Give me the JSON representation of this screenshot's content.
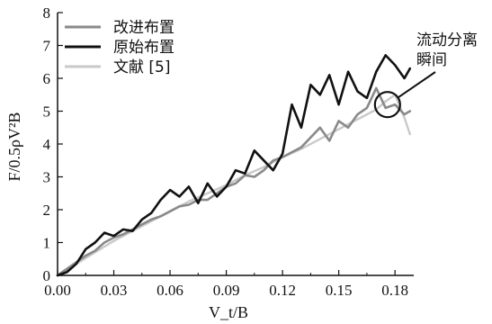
{
  "chart_data": {
    "type": "line",
    "title": "",
    "xlabel": "V_t/B",
    "ylabel": "F/0.5ρV²B",
    "xlim": [
      0,
      0.19
    ],
    "ylim": [
      0,
      8
    ],
    "x_ticks": [
      "0.00",
      "0.03",
      "0.06",
      "0.09",
      "0.12",
      "0.15",
      "0.18"
    ],
    "y_ticks": [
      "0",
      "1",
      "2",
      "3",
      "4",
      "5",
      "6",
      "7",
      "8"
    ],
    "grid": false,
    "legend_position": "top-left",
    "series": [
      {
        "name": "改进布置",
        "color": "#8a8a8a",
        "x": [
          0.0,
          0.005,
          0.01,
          0.015,
          0.02,
          0.025,
          0.03,
          0.035,
          0.04,
          0.045,
          0.05,
          0.055,
          0.06,
          0.065,
          0.07,
          0.075,
          0.08,
          0.085,
          0.09,
          0.095,
          0.1,
          0.105,
          0.11,
          0.115,
          0.12,
          0.125,
          0.13,
          0.135,
          0.14,
          0.145,
          0.15,
          0.155,
          0.16,
          0.165,
          0.17,
          0.175,
          0.18,
          0.185,
          0.188
        ],
        "y": [
          0.0,
          0.2,
          0.4,
          0.6,
          0.75,
          1.0,
          1.15,
          1.25,
          1.4,
          1.55,
          1.7,
          1.8,
          1.95,
          2.1,
          2.15,
          2.3,
          2.3,
          2.5,
          2.7,
          2.8,
          3.05,
          3.0,
          3.2,
          3.5,
          3.6,
          3.75,
          3.9,
          4.2,
          4.5,
          4.1,
          4.7,
          4.5,
          4.9,
          5.1,
          5.7,
          5.1,
          5.2,
          4.9,
          5.0
        ]
      },
      {
        "name": "原始布置",
        "color": "#111111",
        "x": [
          0.0,
          0.005,
          0.01,
          0.015,
          0.02,
          0.025,
          0.03,
          0.035,
          0.04,
          0.045,
          0.05,
          0.055,
          0.06,
          0.065,
          0.07,
          0.075,
          0.08,
          0.085,
          0.09,
          0.095,
          0.1,
          0.105,
          0.11,
          0.115,
          0.12,
          0.125,
          0.13,
          0.135,
          0.14,
          0.145,
          0.15,
          0.155,
          0.16,
          0.165,
          0.17,
          0.175,
          0.18,
          0.185,
          0.188
        ],
        "y": [
          0.0,
          0.1,
          0.35,
          0.8,
          1.0,
          1.3,
          1.2,
          1.4,
          1.35,
          1.7,
          1.9,
          2.3,
          2.6,
          2.4,
          2.7,
          2.2,
          2.8,
          2.4,
          2.7,
          3.2,
          3.1,
          3.8,
          3.5,
          3.2,
          3.7,
          5.2,
          4.5,
          5.8,
          5.5,
          6.1,
          5.2,
          6.2,
          5.6,
          5.4,
          6.2,
          6.7,
          6.4,
          6.0,
          6.3
        ]
      },
      {
        "name": "文献 [5]",
        "color": "#c9c9c9",
        "x": [
          0.0,
          0.01,
          0.02,
          0.03,
          0.04,
          0.05,
          0.06,
          0.07,
          0.08,
          0.09,
          0.1,
          0.11,
          0.12,
          0.13,
          0.14,
          0.15,
          0.16,
          0.17,
          0.175,
          0.18,
          0.185,
          0.188
        ],
        "y": [
          0.0,
          0.35,
          0.7,
          1.05,
          1.35,
          1.65,
          1.95,
          2.25,
          2.5,
          2.75,
          3.05,
          3.3,
          3.6,
          3.85,
          4.15,
          4.45,
          4.75,
          5.05,
          5.3,
          5.5,
          4.8,
          4.3
        ]
      }
    ],
    "annotations": [
      {
        "text_lines": [
          "流动分离",
          "瞬间"
        ],
        "target_x": 0.176,
        "target_y": 5.2
      }
    ]
  }
}
